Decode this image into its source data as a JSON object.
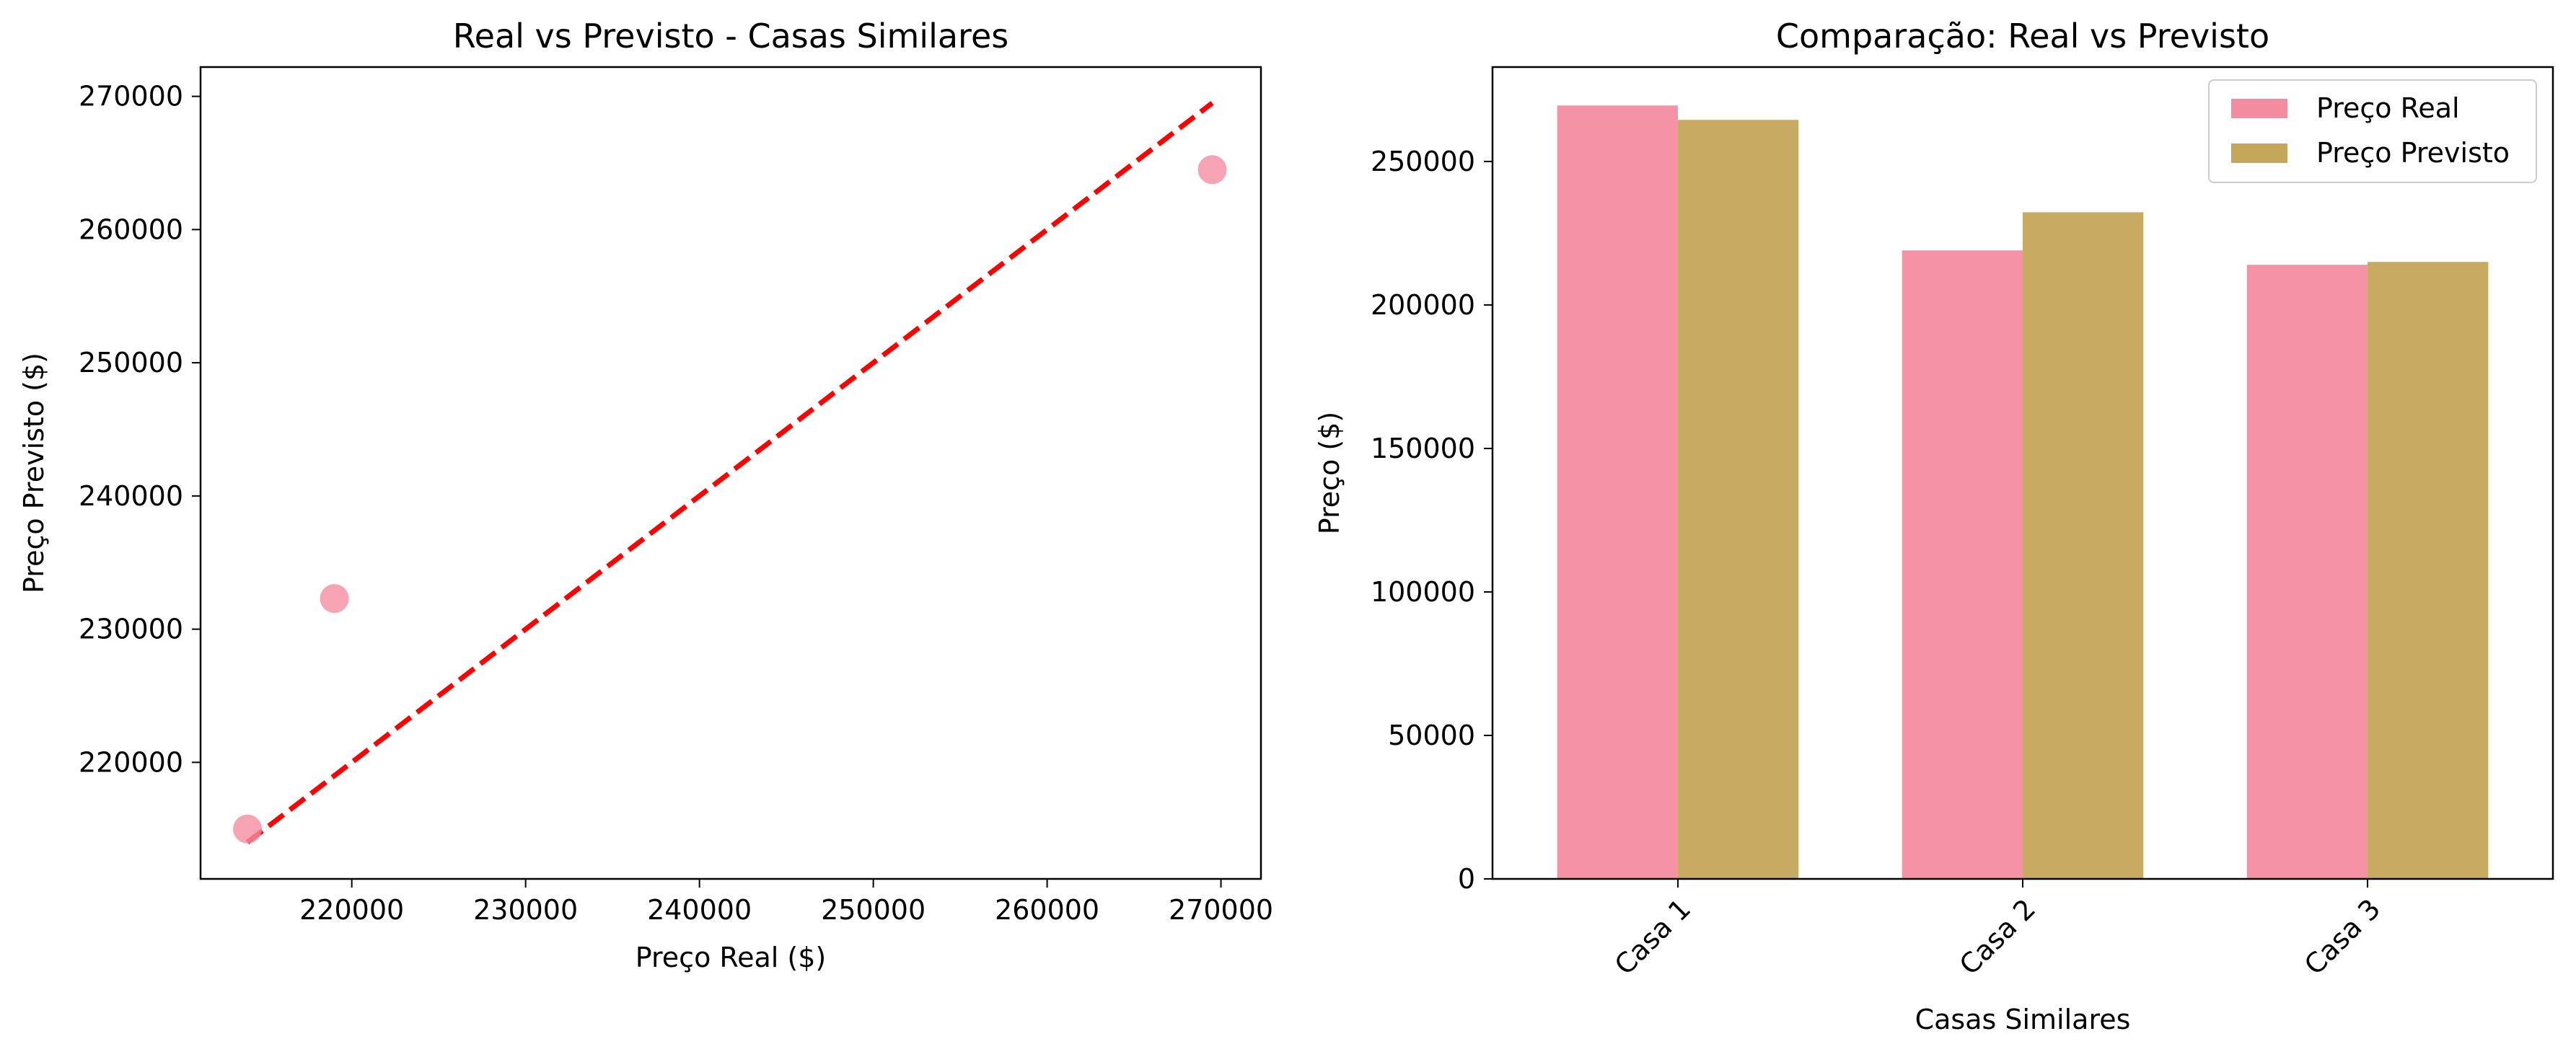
{
  "chart_data": [
    {
      "type": "scatter",
      "title": "Real vs Previsto - Casas Similares",
      "xlabel": "Preço Real ($)",
      "ylabel": "Preço Previsto ($)",
      "xlim": [
        211300,
        272300
      ],
      "ylim": [
        211250,
        272200
      ],
      "xticks": [
        220000,
        230000,
        240000,
        250000,
        260000,
        270000
      ],
      "xtick_labels": [
        "220000",
        "230000",
        "240000",
        "250000",
        "260000",
        "270000"
      ],
      "yticks": [
        220000,
        230000,
        240000,
        250000,
        260000,
        270000
      ],
      "ytick_labels": [
        "220000",
        "230000",
        "240000",
        "250000",
        "260000",
        "270000"
      ],
      "points": [
        {
          "x": 214000,
          "y": 215000
        },
        {
          "x": 219000,
          "y": 232300
        },
        {
          "x": 269500,
          "y": 264500
        }
      ],
      "reference_line": {
        "x": [
          214000,
          269500
        ],
        "y": [
          214000,
          269500
        ],
        "style": "dashed",
        "color": "#ff0000"
      },
      "marker_color": "#f48ca0",
      "grid": false
    },
    {
      "type": "bar",
      "title": "Comparação: Real vs Previsto",
      "xlabel": "Casas Similares",
      "ylabel": "Preço ($)",
      "categories": [
        "Casa 1",
        "Casa 2",
        "Casa 3"
      ],
      "series": [
        {
          "name": "Preço Real",
          "values": [
            269500,
            219000,
            214000
          ],
          "color": "#f48ca0"
        },
        {
          "name": "Preço Previsto",
          "values": [
            264500,
            232300,
            215000
          ],
          "color": "#c5a75a"
        }
      ],
      "ylim": [
        0,
        282900
      ],
      "yticks": [
        0,
        50000,
        100000,
        150000,
        200000,
        250000
      ],
      "ytick_labels": [
        "0",
        "50000",
        "100000",
        "150000",
        "200000",
        "250000"
      ],
      "legend": "top-right",
      "grid": false
    }
  ]
}
